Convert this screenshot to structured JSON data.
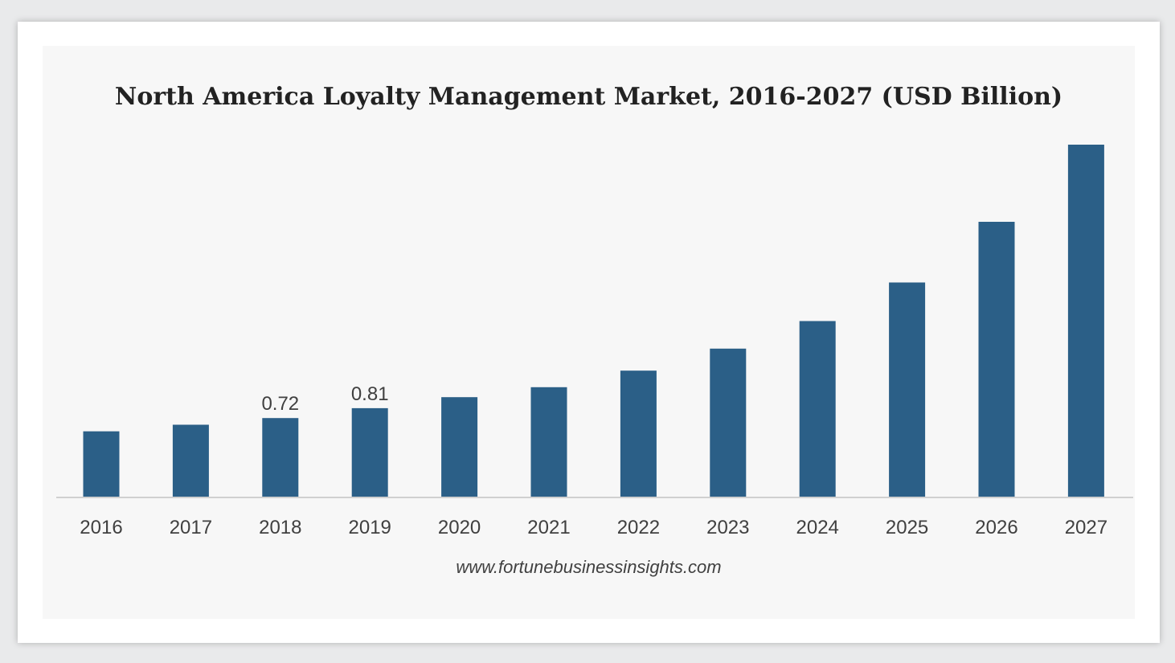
{
  "chart_data": {
    "type": "bar",
    "title": "North America Loyalty Management Market, 2016-2027 (USD Billion)",
    "xlabel": "",
    "ylabel": "",
    "categories": [
      "2016",
      "2017",
      "2018",
      "2019",
      "2020",
      "2021",
      "2022",
      "2023",
      "2024",
      "2025",
      "2026",
      "2027"
    ],
    "values": [
      0.6,
      0.66,
      0.72,
      0.81,
      0.91,
      1.0,
      1.15,
      1.35,
      1.6,
      1.95,
      2.5,
      3.2
    ],
    "data_labels": {
      "2018": "0.72",
      "2019": "0.81"
    },
    "ylim": [
      0,
      3.2
    ],
    "grid": false,
    "legend": "none",
    "bar_color": "#2b5f87"
  },
  "source": "www.fortunebusinessinsights.com"
}
